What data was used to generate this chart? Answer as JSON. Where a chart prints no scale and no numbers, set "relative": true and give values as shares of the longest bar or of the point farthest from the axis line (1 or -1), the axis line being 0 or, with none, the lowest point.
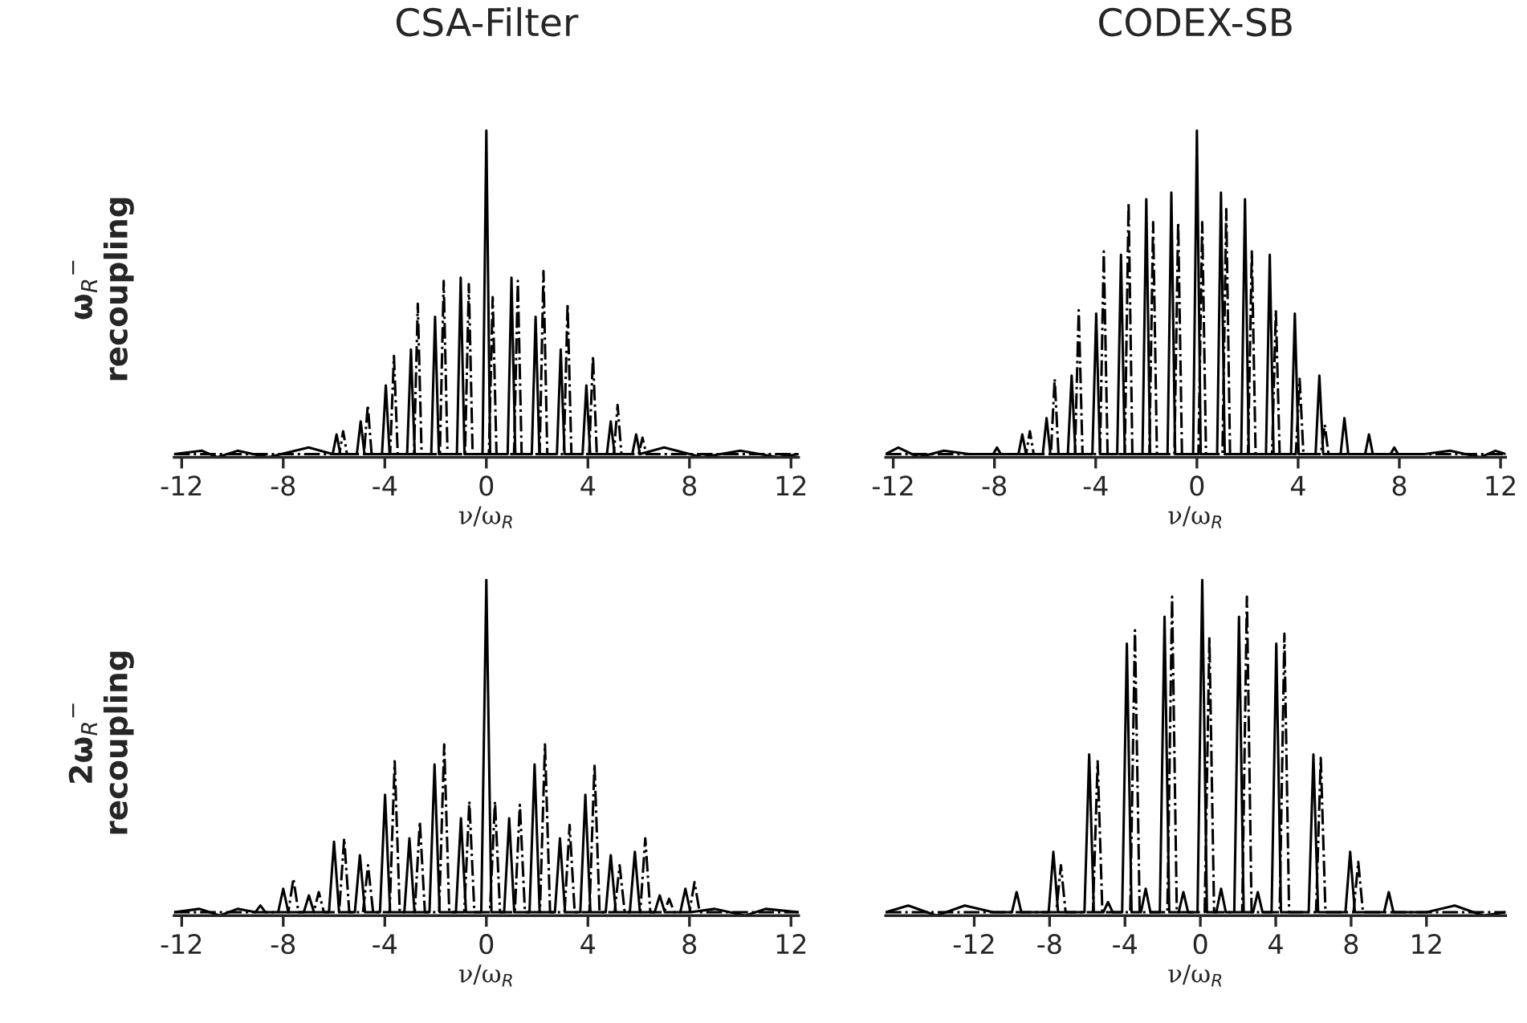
{
  "chart_data": [
    {
      "type": "line",
      "title": "CSA-Filter",
      "ylabel": "ω$_{R}$$^{−}$\nrecoupling",
      "xlabel": "ν/ω$_{R}$",
      "relative": true,
      "xlim": [
        -12.3,
        12.3
      ],
      "xticks": [
        -12,
        -8,
        -4,
        0,
        4,
        8,
        12
      ],
      "grid": false,
      "series": [
        {
          "color": "#000000",
          "line_style": "solid",
          "x": [
            -12.3,
            -11.2,
            -10.6,
            -9.8,
            -8.6,
            -7.0,
            -6.05,
            -5.9,
            -5.75,
            -5.1,
            -4.95,
            -4.8,
            -4.11,
            -3.96,
            -3.81,
            -3.12,
            -2.97,
            -2.82,
            -2.17,
            -2.02,
            -1.87,
            -1.16,
            -1.01,
            -0.86,
            -0.15,
            0,
            0.15,
            0.84,
            0.99,
            1.14,
            1.79,
            1.94,
            2.09,
            2.78,
            2.93,
            3.08,
            3.79,
            3.94,
            4.09,
            4.75,
            4.9,
            5.05,
            5.75,
            5.9,
            6.05,
            7.0,
            8.5,
            10.0,
            11.5,
            12.3
          ],
          "values": [
            0.01,
            0.02,
            0,
            0.02,
            0,
            0.03,
            0.01,
            0.07,
            0.01,
            0.01,
            0.11,
            0.01,
            0.01,
            0.22,
            0.01,
            0.01,
            0.33,
            0.01,
            0.01,
            0.43,
            0.01,
            0.01,
            0.55,
            0.01,
            0.01,
            1.0,
            0.01,
            0.01,
            0.55,
            0.01,
            0.01,
            0.43,
            0.01,
            0.01,
            0.33,
            0.01,
            0.01,
            0.22,
            0.01,
            0.01,
            0.11,
            0.01,
            0.01,
            0.07,
            0.01,
            0.03,
            0,
            0.02,
            0,
            0.01
          ]
        },
        {
          "color": "#000000",
          "line_style": "dashdot",
          "x": [
            -12.3,
            -5.79,
            -5.64,
            -5.49,
            -4.82,
            -4.67,
            -4.52,
            -3.79,
            -3.64,
            -3.49,
            -2.85,
            -2.7,
            -2.55,
            -1.83,
            -1.68,
            -1.53,
            -0.84,
            -0.69,
            -0.54,
            0.1,
            0.25,
            0.4,
            1.09,
            1.24,
            1.39,
            2.1,
            2.25,
            2.4,
            3.05,
            3.2,
            3.35,
            4.05,
            4.2,
            4.35,
            5.02,
            5.17,
            5.32,
            6.0,
            6.15,
            6.3,
            12.3
          ],
          "values": [
            0.01,
            0.01,
            0.08,
            0.01,
            0.01,
            0.16,
            0.01,
            0.01,
            0.31,
            0.01,
            0.01,
            0.47,
            0.01,
            0.01,
            0.54,
            0.01,
            0.01,
            0.53,
            0.01,
            0.01,
            0.49,
            0.01,
            0.01,
            0.54,
            0.01,
            0.01,
            0.57,
            0.01,
            0.01,
            0.47,
            0.01,
            0.01,
            0.31,
            0.01,
            0.01,
            0.16,
            0.01,
            0.01,
            0.06,
            0.01,
            0.01
          ]
        }
      ]
    },
    {
      "type": "line",
      "title": "CODEX-SB",
      "xlabel": "ν/ω$_{R}$",
      "relative": true,
      "xlim": [
        -12.3,
        12.2
      ],
      "xticks": [
        -12,
        -8,
        -4,
        0,
        4,
        8,
        12
      ],
      "grid": false,
      "series": [
        {
          "color": "#000000",
          "line_style": "solid",
          "x": [
            -12.3,
            -11.8,
            -11.0,
            -10.0,
            -9.0,
            -8.05,
            -7.9,
            -7.75,
            -7.05,
            -6.9,
            -6.75,
            -6.09,
            -5.94,
            -5.79,
            -5.1,
            -4.95,
            -4.8,
            -4.13,
            -3.98,
            -3.83,
            -3.15,
            -3.0,
            -2.85,
            -2.15,
            -2.0,
            -1.85,
            -1.16,
            -1.01,
            -0.86,
            -0.15,
            0,
            0.15,
            0.8,
            0.95,
            1.1,
            1.75,
            1.9,
            2.05,
            2.73,
            2.88,
            3.03,
            3.72,
            3.87,
            4.02,
            4.69,
            4.84,
            4.99,
            5.68,
            5.83,
            5.98,
            6.65,
            6.8,
            6.95,
            7.65,
            7.8,
            7.95,
            9.0,
            10.0,
            11.2,
            11.8,
            12.2
          ],
          "values": [
            0.01,
            0.03,
            0,
            0.02,
            0.01,
            0.01,
            0.03,
            0.01,
            0.01,
            0.07,
            0.01,
            0.01,
            0.12,
            0.01,
            0.01,
            0.25,
            0.01,
            0.01,
            0.44,
            0.01,
            0.01,
            0.62,
            0.01,
            0.01,
            0.79,
            0.01,
            0.01,
            0.81,
            0.01,
            0.01,
            1.0,
            0.01,
            0.01,
            0.81,
            0.01,
            0.01,
            0.79,
            0.01,
            0.01,
            0.62,
            0.01,
            0.01,
            0.44,
            0.01,
            0.01,
            0.25,
            0.01,
            0.01,
            0.12,
            0.01,
            0.01,
            0.07,
            0.01,
            0.01,
            0.03,
            0.01,
            0.01,
            0.02,
            0,
            0.02,
            0.01
          ]
        },
        {
          "color": "#000000",
          "line_style": "dashdot",
          "x": [
            -12.3,
            -6.75,
            -6.6,
            -6.45,
            -5.77,
            -5.62,
            -5.47,
            -4.82,
            -4.67,
            -4.52,
            -3.83,
            -3.68,
            -3.53,
            -2.85,
            -2.7,
            -2.55,
            -1.88,
            -1.73,
            -1.58,
            -0.89,
            -0.74,
            -0.59,
            0.06,
            0.21,
            0.36,
            1.01,
            1.16,
            1.31,
            2.02,
            2.17,
            2.32,
            2.97,
            3.12,
            3.27,
            3.91,
            4.06,
            4.21,
            4.9,
            5.05,
            5.2,
            12.2
          ],
          "values": [
            0.01,
            0.01,
            0.08,
            0.01,
            0.01,
            0.24,
            0.01,
            0.01,
            0.45,
            0.01,
            0.01,
            0.63,
            0.01,
            0.01,
            0.78,
            0.01,
            0.01,
            0.72,
            0.01,
            0.01,
            0.72,
            0.01,
            0.01,
            0.72,
            0.01,
            0.01,
            0.76,
            0.01,
            0.01,
            0.63,
            0.01,
            0.01,
            0.45,
            0.01,
            0.01,
            0.24,
            0.01,
            0.01,
            0.1,
            0.01,
            0.01
          ]
        }
      ]
    },
    {
      "type": "line",
      "ylabel": "2ω$_{R}$$^{−}$\nrecoupling",
      "xlabel": "ν/ω$_{R}$",
      "relative": true,
      "xlim": [
        -12.3,
        12.3
      ],
      "xticks": [
        -12,
        -8,
        -4,
        0,
        4,
        8,
        12
      ],
      "grid": false,
      "series": [
        {
          "color": "#000000",
          "line_style": "solid",
          "x": [
            -12.3,
            -11.3,
            -10.5,
            -9.8,
            -9.1,
            -8.9,
            -8.7,
            -8.2,
            -8.0,
            -7.8,
            -7.19,
            -6.99,
            -6.79,
            -6.2,
            -6.0,
            -5.8,
            -5.18,
            -4.98,
            -4.78,
            -4.19,
            -3.99,
            -3.79,
            -3.23,
            -3.03,
            -2.83,
            -2.24,
            -2.04,
            -1.84,
            -1.2,
            -1.0,
            -0.8,
            -0.2,
            0,
            0.2,
            0.7,
            0.9,
            1.1,
            1.7,
            1.9,
            2.1,
            2.7,
            2.9,
            3.1,
            3.7,
            3.9,
            4.1,
            4.7,
            4.9,
            5.1,
            5.65,
            5.85,
            6.05,
            6.63,
            6.83,
            7.03,
            7.64,
            7.84,
            8.04,
            9.0,
            10.2,
            11.0,
            12.3
          ],
          "values": [
            0.01,
            0.02,
            0,
            0.02,
            0.01,
            0.03,
            0.01,
            0.01,
            0.08,
            0.01,
            0.01,
            0.06,
            0.01,
            0.01,
            0.22,
            0.01,
            0.01,
            0.18,
            0.01,
            0.01,
            0.36,
            0.01,
            0.01,
            0.23,
            0.01,
            0.01,
            0.45,
            0.01,
            0.01,
            0.29,
            0.01,
            0.01,
            1.0,
            0.01,
            0.01,
            0.29,
            0.01,
            0.01,
            0.45,
            0.01,
            0.01,
            0.23,
            0.01,
            0.01,
            0.36,
            0.01,
            0.01,
            0.18,
            0.01,
            0.01,
            0.19,
            0.01,
            0.01,
            0.06,
            0.01,
            0.01,
            0.08,
            0.01,
            0.02,
            0,
            0.02,
            0.01
          ]
        },
        {
          "color": "#000000",
          "line_style": "dashdot",
          "x": [
            -12.3,
            -7.8,
            -7.6,
            -7.4,
            -6.8,
            -6.6,
            -6.4,
            -5.8,
            -5.6,
            -5.4,
            -4.86,
            -4.66,
            -4.46,
            -3.81,
            -3.61,
            -3.41,
            -2.82,
            -2.62,
            -2.42,
            -1.86,
            -1.66,
            -1.46,
            -0.87,
            -0.67,
            -0.47,
            0.14,
            0.34,
            0.54,
            1.12,
            1.32,
            1.52,
            2.11,
            2.31,
            2.51,
            3.08,
            3.28,
            3.48,
            4.06,
            4.26,
            4.46,
            5.05,
            5.25,
            5.45,
            6.06,
            6.26,
            6.46,
            7.0,
            7.2,
            7.4,
            8.0,
            8.2,
            8.4,
            12.3
          ],
          "values": [
            0.01,
            0.01,
            0.11,
            0.01,
            0.01,
            0.07,
            0.01,
            0.01,
            0.23,
            0.01,
            0.01,
            0.15,
            0.01,
            0.01,
            0.46,
            0.01,
            0.01,
            0.28,
            0.01,
            0.01,
            0.51,
            0.01,
            0.01,
            0.34,
            0.01,
            0.01,
            0.34,
            0.01,
            0.01,
            0.33,
            0.01,
            0.01,
            0.51,
            0.01,
            0.01,
            0.27,
            0.01,
            0.01,
            0.45,
            0.01,
            0.01,
            0.15,
            0.01,
            0.01,
            0.23,
            0.01,
            0.01,
            0.05,
            0.01,
            0.01,
            0.1,
            0.01,
            0.01
          ]
        }
      ]
    },
    {
      "type": "line",
      "xlabel": "ν/ω$_{R}$",
      "relative": true,
      "xlim": [
        -16.7,
        16.2
      ],
      "xticks": [
        -12,
        -8,
        -4,
        0,
        4,
        8,
        12
      ],
      "grid": false,
      "series": [
        {
          "color": "#000000",
          "line_style": "solid",
          "x": [
            -16.7,
            -15.5,
            -14.0,
            -12.5,
            -11.0,
            -10.0,
            -9.75,
            -9.5,
            -8.05,
            -7.8,
            -7.55,
            -6.15,
            -5.9,
            -5.65,
            -5.15,
            -4.9,
            -4.65,
            -4.15,
            -3.9,
            -3.65,
            -3.15,
            -2.9,
            -2.65,
            -2.15,
            -1.9,
            -1.65,
            -1.15,
            -0.9,
            -0.65,
            -0.15,
            0.1,
            0.35,
            0.85,
            1.1,
            1.35,
            1.8,
            2.05,
            2.3,
            2.8,
            3.05,
            3.3,
            3.78,
            4.03,
            4.28,
            5.75,
            6.0,
            6.25,
            7.7,
            7.95,
            8.2,
            9.75,
            10.0,
            10.25,
            12.0,
            13.5,
            15.0,
            16.2
          ],
          "values": [
            0.01,
            0.03,
            0,
            0.03,
            0.01,
            0.01,
            0.07,
            0.01,
            0.01,
            0.19,
            0.01,
            0.01,
            0.48,
            0.01,
            0.01,
            0.04,
            0.01,
            0.01,
            0.81,
            0.01,
            0.01,
            0.08,
            0.01,
            0.01,
            0.89,
            0.01,
            0.01,
            0.07,
            0.01,
            0.01,
            1.0,
            0.01,
            0.01,
            0.08,
            0.01,
            0.01,
            0.89,
            0.01,
            0.01,
            0.07,
            0.01,
            0.01,
            0.81,
            0.01,
            0.01,
            0.48,
            0.01,
            0.01,
            0.19,
            0.01,
            0.01,
            0.07,
            0.01,
            0.01,
            0.03,
            0,
            0.01
          ]
        },
        {
          "color": "#000000",
          "line_style": "dashdot",
          "x": [
            -16.7,
            -7.65,
            -7.4,
            -7.15,
            -5.7,
            -5.45,
            -5.2,
            -3.72,
            -3.47,
            -3.22,
            -1.75,
            -1.5,
            -1.25,
            0.23,
            0.48,
            0.73,
            2.22,
            2.47,
            2.72,
            4.21,
            4.46,
            4.71,
            6.14,
            6.39,
            6.64,
            8.13,
            8.38,
            8.63,
            16.2
          ],
          "values": [
            0.01,
            0.01,
            0.15,
            0.01,
            0.01,
            0.46,
            0.01,
            0.01,
            0.85,
            0.01,
            0.01,
            0.95,
            0.01,
            0.01,
            0.83,
            0.01,
            0.01,
            0.95,
            0.01,
            0.01,
            0.84,
            0.01,
            0.01,
            0.47,
            0.01,
            0.01,
            0.16,
            0.01,
            0.01
          ]
        }
      ]
    }
  ]
}
